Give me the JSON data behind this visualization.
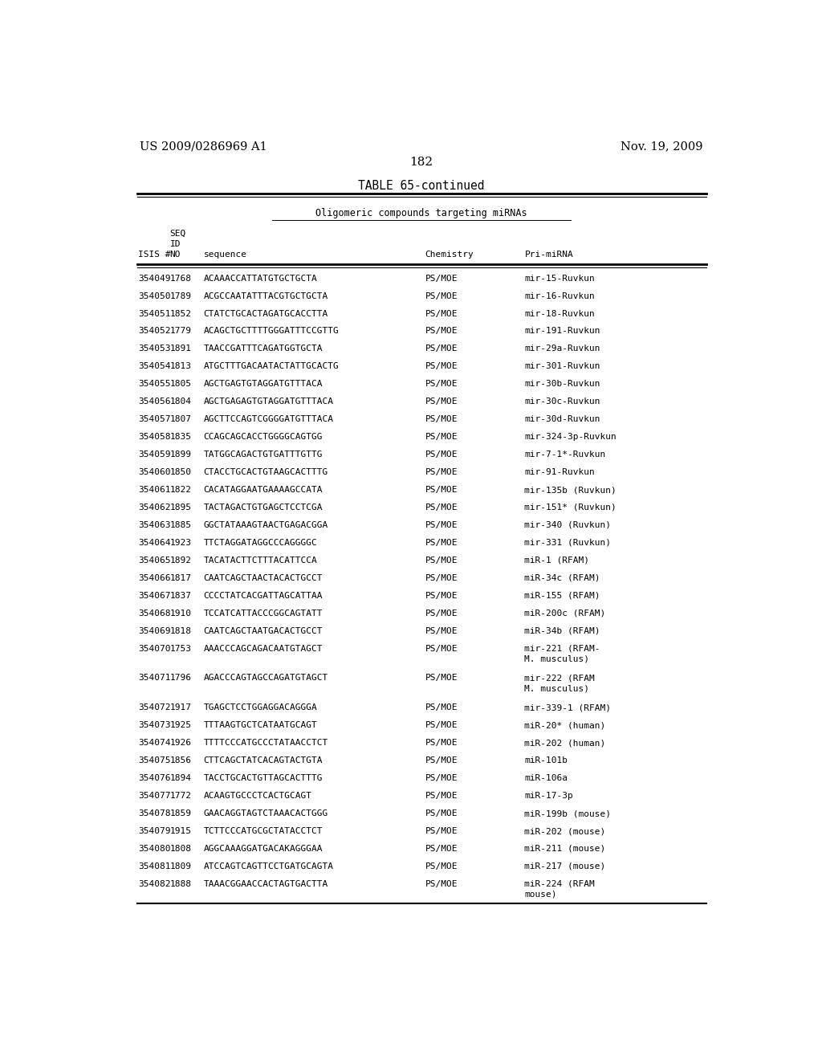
{
  "header_left": "US 2009/0286969 A1",
  "header_right": "Nov. 19, 2009",
  "page_number": "182",
  "table_title": "TABLE 65-continued",
  "table_subtitle": "Oligomeric compounds targeting miRNAs",
  "rows": [
    [
      "354049",
      "1768",
      "ACAAACCATTATGTGCTGCTA",
      "PS/MOE",
      "mir-15-Ruvkun"
    ],
    [
      "354050",
      "1789",
      "ACGCCAATATTTACGTGCTGCTA",
      "PS/MOE",
      "mir-16-Ruvkun"
    ],
    [
      "354051",
      "1852",
      "CTATCTGCACTAGATGCACCTTA",
      "PS/MOE",
      "mir-18-Ruvkun"
    ],
    [
      "354052",
      "1779",
      "ACAGCTGCTTTTGGGATTTCCGTTG",
      "PS/MOE",
      "mir-191-Ruvkun"
    ],
    [
      "354053",
      "1891",
      "TAACCGATTTCAGATGGTGCTA",
      "PS/MOE",
      "mir-29a-Ruvkun"
    ],
    [
      "354054",
      "1813",
      "ATGCTTTGACAATACTATTGCACTG",
      "PS/MOE",
      "mir-301-Ruvkun"
    ],
    [
      "354055",
      "1805",
      "AGCTGAGTGTAGGATGTTTACA",
      "PS/MOE",
      "mir-30b-Ruvkun"
    ],
    [
      "354056",
      "1804",
      "AGCTGAGAGTGTAGGATGTTTACA",
      "PS/MOE",
      "mir-30c-Ruvkun"
    ],
    [
      "354057",
      "1807",
      "AGCTTCCAGTCGGGGATGTTTACA",
      "PS/MOE",
      "mir-30d-Ruvkun"
    ],
    [
      "354058",
      "1835",
      "CCAGCAGCACCTGGGGCAGTGG",
      "PS/MOE",
      "mir-324-3p-Ruvkun"
    ],
    [
      "354059",
      "1899",
      "TATGGCAGACTGTGATTTGTTG",
      "PS/MOE",
      "mir-7-1*-Ruvkun"
    ],
    [
      "354060",
      "1850",
      "CTACCTGCACTGTAAGCACTTTG",
      "PS/MOE",
      "mir-91-Ruvkun"
    ],
    [
      "354061",
      "1822",
      "CACATAGGAATGAAAAGCCATA",
      "PS/MOE",
      "mir-135b (Ruvkun)"
    ],
    [
      "354062",
      "1895",
      "TACTAGACTGTGAGCTCCTCGA",
      "PS/MOE",
      "mir-151* (Ruvkun)"
    ],
    [
      "354063",
      "1885",
      "GGCTATAAAGTAACTGAGACGGA",
      "PS/MOE",
      "mir-340 (Ruvkun)"
    ],
    [
      "354064",
      "1923",
      "TTCTAGGATAGGCCCAGGGGC",
      "PS/MOE",
      "mir-331 (Ruvkun)"
    ],
    [
      "354065",
      "1892",
      "TACATACTTCTTTACATTCCA",
      "PS/MOE",
      "miR-1 (RFAM)"
    ],
    [
      "354066",
      "1817",
      "CAATCAGCTAACTACACTGCCT",
      "PS/MOE",
      "miR-34c (RFAM)"
    ],
    [
      "354067",
      "1837",
      "CCCCTATCACGATTAGCATTAA",
      "PS/MOE",
      "miR-155 (RFAM)"
    ],
    [
      "354068",
      "1910",
      "TCCATCATTACCCGGCAGTATT",
      "PS/MOE",
      "miR-200c (RFAM)"
    ],
    [
      "354069",
      "1818",
      "CAATCAGCTAATGACACTGCCT",
      "PS/MOE",
      "miR-34b (RFAM)"
    ],
    [
      "354070",
      "1753",
      "AAACCCAGCAGACAATGTAGCT",
      "PS/MOE",
      "mir-221 (RFAM-\nM. musculus)"
    ],
    [
      "354071",
      "1796",
      "AGACCCAGTAGCCAGATGTAGCT",
      "PS/MOE",
      "mir-222 (RFAM\nM. musculus)"
    ],
    [
      "354072",
      "1917",
      "TGAGCTCCTGGAGGACAGGGA",
      "PS/MOE",
      "mir-339-1 (RFAM)"
    ],
    [
      "354073",
      "1925",
      "TTTAAGTGCTCATAATGCAGT",
      "PS/MOE",
      "miR-20* (human)"
    ],
    [
      "354074",
      "1926",
      "TTTTCCCATGCCCTATAACCTCT",
      "PS/MOE",
      "miR-202 (human)"
    ],
    [
      "354075",
      "1856",
      "CTTCAGCTATCACAGTACTGTA",
      "PS/MOE",
      "miR-101b"
    ],
    [
      "354076",
      "1894",
      "TACCTGCACTGTTAGCACTTTG",
      "PS/MOE",
      "miR-106a"
    ],
    [
      "354077",
      "1772",
      "ACAAGTGCCCTCACTGCAGT",
      "PS/MOE",
      "miR-17-3p"
    ],
    [
      "354078",
      "1859",
      "GAACAGGTAGTCTAAACACTGGG",
      "PS/MOE",
      "miR-199b (mouse)"
    ],
    [
      "354079",
      "1915",
      "TCTTCCCATGCGCTATACCTCT",
      "PS/MOE",
      "miR-202 (mouse)"
    ],
    [
      "354080",
      "1808",
      "AGGCAAAGGATGACAKAGGGAA",
      "PS/MOE",
      "miR-211 (mouse)"
    ],
    [
      "354081",
      "1809",
      "ATCCAGTCAGTTCCTGATGCAGTA",
      "PS/MOE",
      "miR-217 (mouse)"
    ],
    [
      "354082",
      "1888",
      "TAAACGGAACCACTAGTGACTTA",
      "PS/MOE",
      "miR-224 (RFAM\nmouse)"
    ]
  ],
  "bg_color": "#ffffff",
  "text_color": "#000000",
  "font_size": 8.0,
  "title_font_size": 10.5
}
